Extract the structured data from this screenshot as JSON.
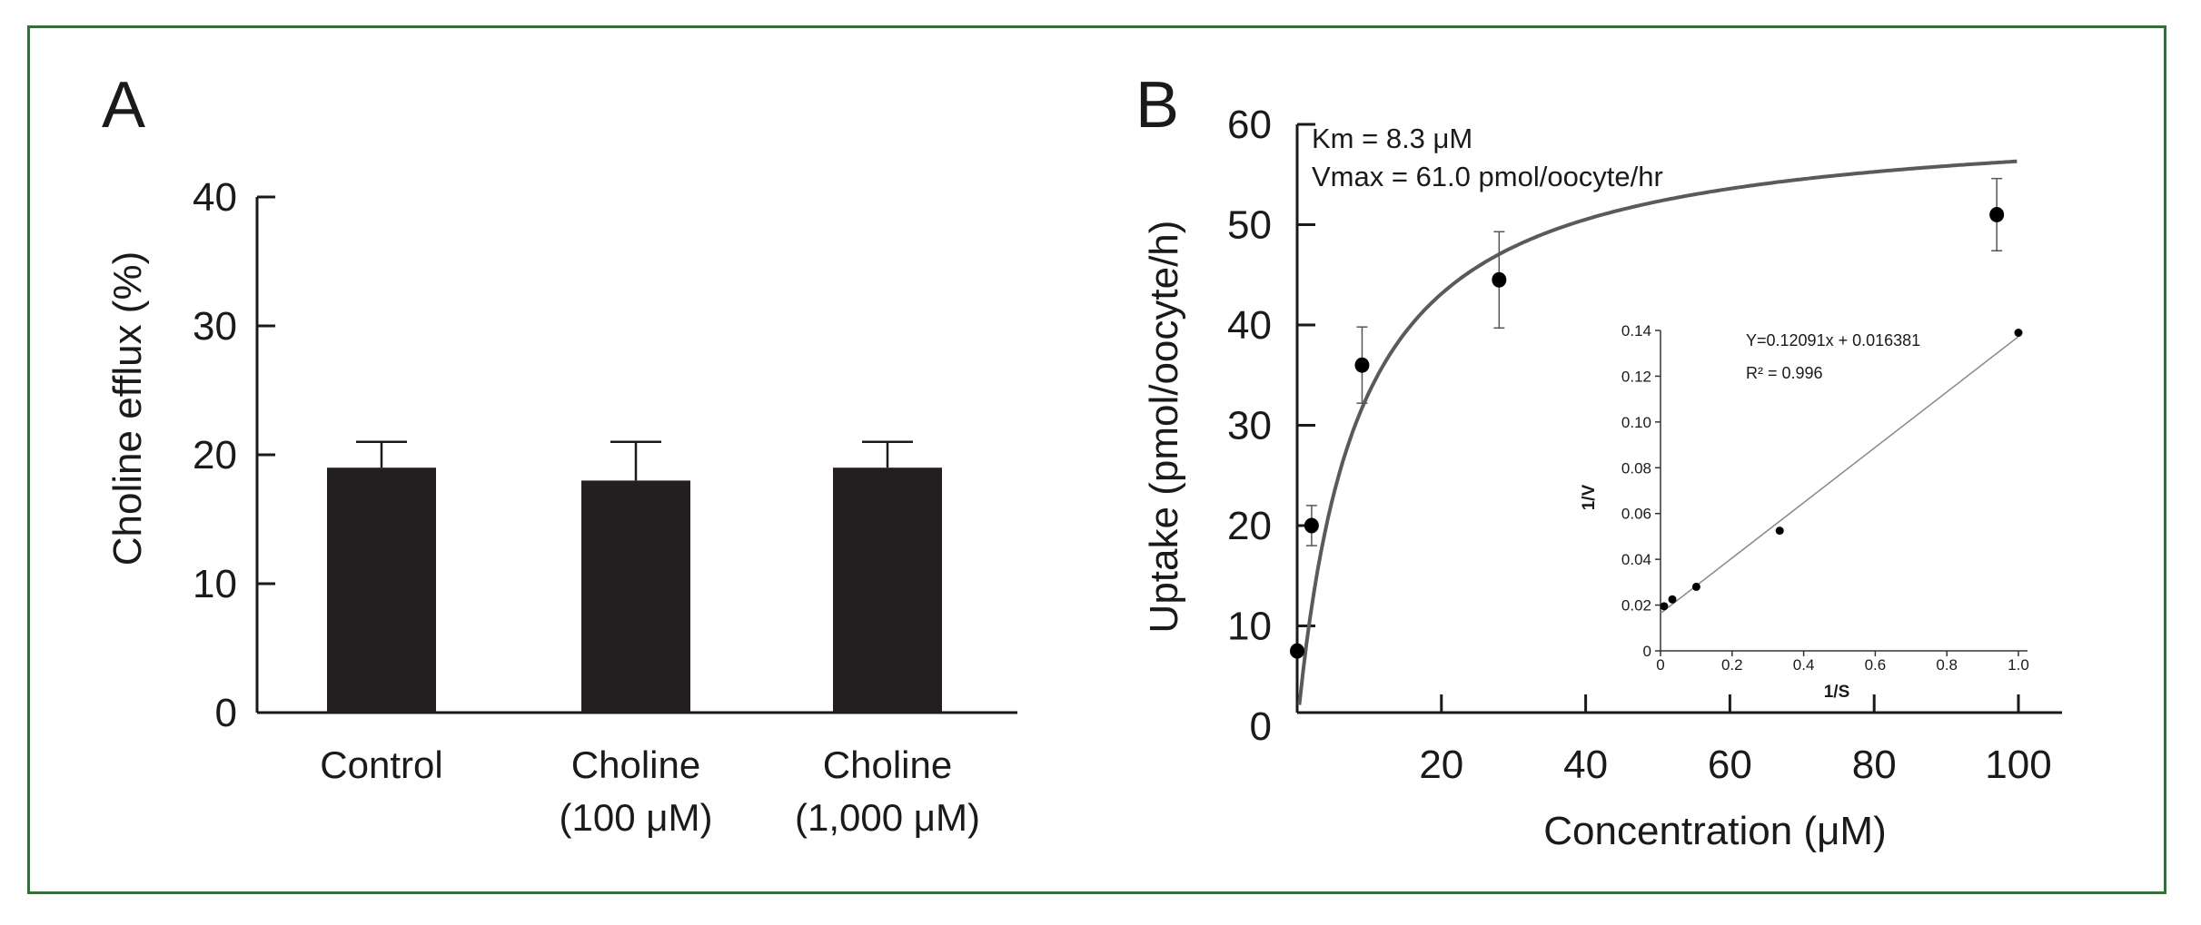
{
  "chart_data": [
    {
      "panel": "A",
      "type": "bar",
      "ylabel": "Choline efflux (%)",
      "ylim": [
        0,
        40
      ],
      "yticks": [
        "0",
        "10",
        "20",
        "30",
        "40"
      ],
      "yticks_values": [
        0,
        10,
        20,
        30,
        40
      ],
      "categories": [
        {
          "line1": "Control",
          "line2": ""
        },
        {
          "line1": "Choline",
          "line2": "(100 μM)"
        },
        {
          "line1": "Choline",
          "line2": "(1,000 μM)"
        }
      ],
      "values": [
        19,
        18,
        19
      ],
      "errors": [
        2,
        3,
        2
      ],
      "bar_color": "#231f20"
    },
    {
      "panel": "B",
      "type": "scatter",
      "xlabel": "Concentration (μM)",
      "ylabel": "Uptake (pmol/oocyte/h)",
      "xlim": [
        0,
        105
      ],
      "ylim": [
        0,
        60
      ],
      "xticks": [
        "20",
        "40",
        "60",
        "80",
        "100"
      ],
      "xticks_values": [
        20,
        40,
        60,
        80,
        100
      ],
      "yticks": [
        "0",
        "10",
        "20",
        "30",
        "40",
        "50",
        "60"
      ],
      "yticks_values": [
        0,
        10,
        20,
        30,
        40,
        50,
        60
      ],
      "points": [
        {
          "x": 0,
          "y": 7.5,
          "err": 0
        },
        {
          "x": 2,
          "y": 20,
          "err": 2
        },
        {
          "x": 9,
          "y": 36,
          "err": 3.8
        },
        {
          "x": 28,
          "y": 44.5,
          "err": 4.8
        },
        {
          "x": 97,
          "y": 51,
          "err": 3.6
        }
      ],
      "fit": {
        "model": "Michaelis-Menten",
        "km": 8.3,
        "vmax": 61.0
      },
      "annotations": [
        "Km = 8.3 μM",
        "Vmax = 61.0 pmol/oocyte/hr"
      ],
      "inset": {
        "type": "scatter",
        "xlabel": "1/S",
        "ylabel": "1/V",
        "xlim": [
          0,
          1.0
        ],
        "ylim": [
          0,
          0.14
        ],
        "xticks": [
          "0",
          "0.2",
          "0.4",
          "0.6",
          "0.8",
          "1.0"
        ],
        "xticks_values": [
          0,
          0.2,
          0.4,
          0.6,
          0.8,
          1.0
        ],
        "yticks": [
          "0",
          "0.02",
          "0.04",
          "0.06",
          "0.08",
          "0.10",
          "0.12",
          "0.14"
        ],
        "yticks_values": [
          0,
          0.02,
          0.04,
          0.06,
          0.08,
          0.1,
          0.12,
          0.14
        ],
        "points": [
          {
            "x": 0.01,
            "y": 0.0195
          },
          {
            "x": 0.033,
            "y": 0.0225
          },
          {
            "x": 0.1,
            "y": 0.028
          },
          {
            "x": 0.333,
            "y": 0.0525
          },
          {
            "x": 1.0,
            "y": 0.139
          }
        ],
        "fit": {
          "slope": 0.12091,
          "intercept": 0.016381
        },
        "equation": "Y=0.12091x + 0.016381",
        "r2": "R² = 0.996"
      }
    }
  ],
  "panel_labels": [
    "A",
    "B"
  ]
}
